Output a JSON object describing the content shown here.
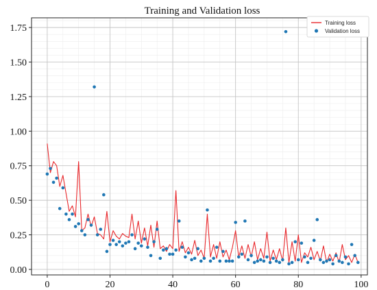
{
  "chart_data": {
    "type": "line",
    "title": "Training and Validation loss",
    "xlabel": "",
    "ylabel": "",
    "xlim": [
      -5,
      102
    ],
    "ylim": [
      -0.04,
      1.82
    ],
    "grid": true,
    "legend_position": "top-right",
    "x_ticks": [
      0,
      20,
      40,
      60,
      80,
      100
    ],
    "y_ticks": [
      0.0,
      0.25,
      0.5,
      0.75,
      1.0,
      1.25,
      1.5,
      1.75
    ],
    "x_tick_labels": [
      "0",
      "20",
      "40",
      "60",
      "80",
      "100"
    ],
    "y_tick_labels": [
      "0.00",
      "0.25",
      "0.50",
      "0.75",
      "1.00",
      "1.25",
      "1.50",
      "1.75"
    ],
    "series": [
      {
        "name": "Training loss",
        "kind": "line",
        "color": "#e8262a",
        "x": [
          0,
          1,
          2,
          3,
          4,
          5,
          6,
          7,
          8,
          9,
          10,
          11,
          12,
          13,
          14,
          15,
          16,
          17,
          18,
          19,
          20,
          21,
          22,
          23,
          24,
          25,
          26,
          27,
          28,
          29,
          30,
          31,
          32,
          33,
          34,
          35,
          36,
          37,
          38,
          39,
          40,
          41,
          42,
          43,
          44,
          45,
          46,
          47,
          48,
          49,
          50,
          51,
          52,
          53,
          54,
          55,
          56,
          57,
          58,
          59,
          60,
          61,
          62,
          63,
          64,
          65,
          66,
          67,
          68,
          69,
          70,
          71,
          72,
          73,
          74,
          75,
          76,
          77,
          78,
          79,
          80,
          81,
          82,
          83,
          84,
          85,
          86,
          87,
          88,
          89,
          90,
          91,
          92,
          93,
          94,
          95,
          96,
          97,
          98,
          99
        ],
        "y": [
          0.91,
          0.7,
          0.78,
          0.75,
          0.6,
          0.68,
          0.55,
          0.42,
          0.46,
          0.38,
          0.78,
          0.28,
          0.3,
          0.4,
          0.31,
          0.38,
          0.26,
          0.25,
          0.22,
          0.42,
          0.2,
          0.28,
          0.24,
          0.22,
          0.26,
          0.24,
          0.23,
          0.4,
          0.22,
          0.35,
          0.19,
          0.3,
          0.17,
          0.32,
          0.16,
          0.35,
          0.15,
          0.17,
          0.13,
          0.18,
          0.15,
          0.57,
          0.13,
          0.2,
          0.12,
          0.16,
          0.11,
          0.21,
          0.1,
          0.14,
          0.08,
          0.4,
          0.09,
          0.18,
          0.08,
          0.2,
          0.09,
          0.14,
          0.07,
          0.16,
          0.28,
          0.09,
          0.17,
          0.08,
          0.18,
          0.09,
          0.2,
          0.07,
          0.15,
          0.08,
          0.27,
          0.06,
          0.14,
          0.07,
          0.15,
          0.06,
          0.3,
          0.05,
          0.2,
          0.06,
          0.25,
          0.05,
          0.12,
          0.09,
          0.16,
          0.07,
          0.13,
          0.06,
          0.17,
          0.05,
          0.11,
          0.06,
          0.12,
          0.05,
          0.18,
          0.07,
          0.1,
          0.05,
          0.11,
          0.05
        ]
      },
      {
        "name": "Validation loss",
        "kind": "scatter",
        "color": "#1f77b4",
        "x": [
          0,
          1,
          2,
          3,
          4,
          5,
          6,
          7,
          8,
          9,
          10,
          11,
          12,
          13,
          14,
          15,
          16,
          17,
          18,
          19,
          20,
          21,
          22,
          23,
          24,
          25,
          26,
          27,
          28,
          29,
          30,
          31,
          32,
          33,
          34,
          35,
          36,
          37,
          38,
          39,
          40,
          41,
          42,
          43,
          44,
          45,
          46,
          47,
          48,
          49,
          50,
          51,
          52,
          53,
          54,
          55,
          56,
          57,
          58,
          59,
          60,
          61,
          62,
          63,
          64,
          65,
          66,
          67,
          68,
          69,
          70,
          71,
          72,
          73,
          74,
          75,
          76,
          77,
          78,
          79,
          80,
          81,
          82,
          83,
          84,
          85,
          86,
          87,
          88,
          89,
          90,
          91,
          92,
          93,
          94,
          95,
          96,
          97,
          98,
          99
        ],
        "y": [
          0.69,
          0.73,
          0.63,
          0.66,
          0.44,
          0.59,
          0.4,
          0.36,
          0.4,
          0.31,
          0.33,
          0.28,
          0.25,
          0.36,
          0.32,
          1.32,
          0.25,
          0.29,
          0.54,
          0.13,
          0.18,
          0.21,
          0.18,
          0.2,
          0.17,
          0.19,
          0.2,
          0.25,
          0.15,
          0.19,
          0.17,
          0.22,
          0.16,
          0.1,
          0.2,
          0.29,
          0.08,
          0.14,
          0.15,
          0.11,
          0.11,
          0.14,
          0.35,
          0.16,
          0.09,
          0.12,
          0.07,
          0.08,
          0.15,
          0.06,
          0.08,
          0.43,
          0.06,
          0.08,
          0.16,
          0.06,
          0.13,
          0.06,
          0.06,
          0.06,
          0.34,
          0.09,
          0.11,
          0.35,
          0.07,
          0.1,
          0.05,
          0.06,
          0.07,
          0.06,
          0.09,
          0.05,
          0.08,
          0.06,
          0.05,
          0.07,
          1.72,
          0.04,
          0.05,
          0.2,
          0.07,
          0.19,
          0.09,
          0.05,
          0.08,
          0.21,
          0.36,
          0.07,
          0.05,
          0.06,
          0.07,
          0.04,
          0.1,
          0.06,
          0.05,
          0.09,
          0.04,
          0.18,
          0.1,
          0.05
        ]
      }
    ]
  }
}
